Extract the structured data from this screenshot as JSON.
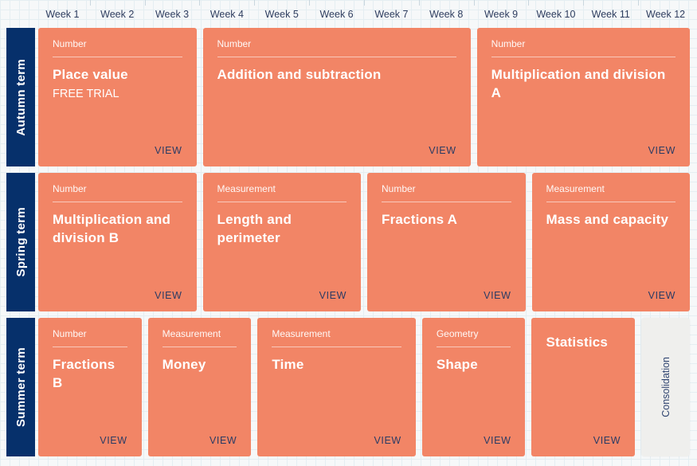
{
  "colors": {
    "background": "#F6F8F9",
    "grid_line": "#E5EEF2",
    "term_bar_navy": "#06306B",
    "card_salmon": "#F28566",
    "week_label_text": "#2E3D5F",
    "view_text": "#2A3B64",
    "consolidation_bg": "#EFEFED"
  },
  "week_header": {
    "weeks": [
      "Week 1",
      "Week 2",
      "Week 3",
      "Week 4",
      "Week 5",
      "Week 6",
      "Week 7",
      "Week 8",
      "Week 9",
      "Week 10",
      "Week 11",
      "Week 12"
    ]
  },
  "terms": [
    {
      "label": "Autumn term",
      "cards": [
        {
          "category": "Number",
          "title": "Place value",
          "subtitle": "FREE TRIAL",
          "action": "VIEW",
          "weeks": 3
        },
        {
          "category": "Number",
          "title": "Addition and subtraction",
          "action": "VIEW",
          "weeks": 5
        },
        {
          "category": "Number",
          "title": "Multiplication and division A",
          "action": "VIEW",
          "weeks": 4
        }
      ]
    },
    {
      "label": "Spring term",
      "cards": [
        {
          "category": "Number",
          "title": "Multiplication and division B",
          "action": "VIEW",
          "weeks": 3
        },
        {
          "category": "Measurement",
          "title": "Length and perimeter",
          "action": "VIEW",
          "weeks": 3
        },
        {
          "category": "Number",
          "title": "Fractions A",
          "action": "VIEW",
          "weeks": 3
        },
        {
          "category": "Measurement",
          "title": "Mass and capacity",
          "action": "VIEW",
          "weeks": 3
        }
      ]
    },
    {
      "label": "Summer term",
      "cards": [
        {
          "category": "Number",
          "title": "Fractions B",
          "action": "VIEW",
          "weeks": 2
        },
        {
          "category": "Measurement",
          "title": "Money",
          "action": "VIEW",
          "weeks": 2
        },
        {
          "category": "Measurement",
          "title": "Time",
          "action": "VIEW",
          "weeks": 3
        },
        {
          "category": "Geometry",
          "title": "Shape",
          "action": "VIEW",
          "weeks": 2
        },
        {
          "category": "",
          "title": "Statistics",
          "action": "VIEW",
          "weeks": 2
        },
        {
          "type": "consolidation",
          "title": "Consolidation",
          "weeks": 1
        }
      ]
    }
  ]
}
